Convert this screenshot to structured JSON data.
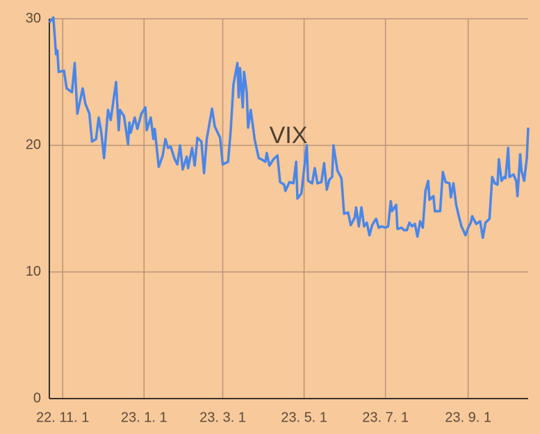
{
  "chart_data": {
    "type": "line",
    "title": "VIX",
    "color": "#4a86e8",
    "grid": true,
    "x": [
      "2022-10-22",
      "2022-10-25",
      "2022-10-27",
      "2022-10-28",
      "2022-10-29",
      "2022-11-02",
      "2022-11-04",
      "2022-11-08",
      "2022-11-10",
      "2022-11-12",
      "2022-11-16",
      "2022-11-18",
      "2022-11-21",
      "2022-11-23",
      "2022-11-26",
      "2022-11-28",
      "2022-11-30",
      "2022-12-02",
      "2022-12-05",
      "2022-12-07",
      "2022-12-09",
      "2022-12-11",
      "2022-12-13",
      "2022-12-14",
      "2022-12-17",
      "2022-12-20",
      "2022-12-21",
      "2022-12-22",
      "2022-12-25",
      "2022-12-27",
      "2022-12-30",
      "2023-01-02",
      "2023-01-03",
      "2023-01-06",
      "2023-01-08",
      "2023-01-09",
      "2023-01-12",
      "2023-01-15",
      "2023-01-17",
      "2023-01-19",
      "2023-01-21",
      "2023-01-24",
      "2023-01-26",
      "2023-01-28",
      "2023-01-30",
      "2023-02-02",
      "2023-02-03",
      "2023-02-06",
      "2023-02-08",
      "2023-02-10",
      "2023-02-13",
      "2023-02-15",
      "2023-02-17",
      "2023-02-21",
      "2023-02-23",
      "2023-02-27",
      "2023-03-01",
      "2023-03-05",
      "2023-03-07",
      "2023-03-09",
      "2023-03-12",
      "2023-03-13",
      "2023-03-14",
      "2023-03-16",
      "2023-03-17",
      "2023-03-19",
      "2023-03-20",
      "2023-03-22",
      "2023-03-25",
      "2023-03-28",
      "2023-03-30",
      "2023-04-02",
      "2023-04-03",
      "2023-04-05",
      "2023-04-08",
      "2023-04-11",
      "2023-04-13",
      "2023-04-16",
      "2023-04-17",
      "2023-04-20",
      "2023-04-23",
      "2023-04-25",
      "2023-04-26",
      "2023-04-29",
      "2023-05-03",
      "2023-05-04",
      "2023-05-07",
      "2023-05-09",
      "2023-05-11",
      "2023-05-14",
      "2023-05-16",
      "2023-05-18",
      "2023-05-20",
      "2023-05-22",
      "2023-05-23",
      "2023-05-26",
      "2023-05-29",
      "2023-05-31",
      "2023-06-03",
      "2023-06-05",
      "2023-06-08",
      "2023-06-09",
      "2023-06-11",
      "2023-06-13",
      "2023-06-15",
      "2023-06-17",
      "2023-06-19",
      "2023-06-21",
      "2023-06-24",
      "2023-06-26",
      "2023-06-28",
      "2023-07-01",
      "2023-07-03",
      "2023-07-05",
      "2023-07-06",
      "2023-07-09",
      "2023-07-10",
      "2023-07-13",
      "2023-07-15",
      "2023-07-17",
      "2023-07-19",
      "2023-07-21",
      "2023-07-23",
      "2023-07-25",
      "2023-07-27",
      "2023-07-29",
      "2023-07-31",
      "2023-08-02",
      "2023-08-03",
      "2023-08-06",
      "2023-08-07",
      "2023-08-11",
      "2023-08-13",
      "2023-08-15",
      "2023-08-18",
      "2023-08-19",
      "2023-08-21",
      "2023-08-23",
      "2023-08-25",
      "2023-08-27",
      "2023-08-30",
      "2023-09-01",
      "2023-09-03",
      "2023-09-04",
      "2023-09-07",
      "2023-09-10",
      "2023-09-12",
      "2023-09-14",
      "2023-09-17",
      "2023-09-19",
      "2023-09-21",
      "2023-09-23",
      "2023-09-24",
      "2023-09-26",
      "2023-09-28",
      "2023-09-29",
      "2023-10-01",
      "2023-10-02",
      "2023-10-05",
      "2023-10-07",
      "2023-10-08",
      "2023-10-10",
      "2023-10-11",
      "2023-10-13",
      "2023-10-15",
      "2023-10-16"
    ],
    "values": [
      29.7,
      30.1,
      27.2,
      27.5,
      25.8,
      25.9,
      24.5,
      24.2,
      26.5,
      22.5,
      24.5,
      23.3,
      22.5,
      20.3,
      20.5,
      22.2,
      21,
      19,
      22.8,
      22,
      23.5,
      25,
      21.2,
      22.8,
      22.3,
      20.1,
      21.8,
      21,
      22.2,
      21.3,
      22.5,
      23,
      21.2,
      22.2,
      20.5,
      21.3,
      18.3,
      19.2,
      20.5,
      19.8,
      19.9,
      18.9,
      18.5,
      20,
      18.1,
      19.1,
      18.2,
      19.8,
      18.4,
      20.6,
      20.3,
      17.8,
      20.5,
      22.9,
      21.5,
      20.6,
      18.5,
      18.7,
      21.2,
      24.8,
      26.5,
      23.8,
      26.1,
      23,
      25.8,
      24.2,
      21.4,
      22.8,
      20.4,
      19,
      18.9,
      18.7,
      19.4,
      18.4,
      18.9,
      19.2,
      17.1,
      16.9,
      16.4,
      17.1,
      17,
      18.7,
      15.8,
      16.2,
      20,
      17.2,
      17,
      18.2,
      17,
      17.1,
      18.6,
      16.5,
      17.3,
      17.5,
      20,
      18,
      17.4,
      14.6,
      14.7,
      13.7,
      14.3,
      15.1,
      13.6,
      15.1,
      13.6,
      13.9,
      12.9,
      13.7,
      14.2,
      13.5,
      13.6,
      13.5,
      13.6,
      15.6,
      14.8,
      15.3,
      13.4,
      13.5,
      13.3,
      13.3,
      13.9,
      13.6,
      13.8,
      12.8,
      14,
      13.5,
      16.4,
      17.2,
      15.7,
      16,
      14.8,
      14.8,
      17.9,
      17.1,
      17,
      15.9,
      17,
      15.3,
      14.4,
      13.6,
      12.9,
      13.5,
      13.9,
      14.4,
      13.8,
      14,
      12.7,
      13.9,
      14.2,
      17.5,
      17,
      16.9,
      18.9,
      17.2,
      17.5,
      17.4,
      19.8,
      17.5,
      17.7,
      17.2,
      16,
      19.3,
      18,
      17.2,
      19,
      21.4
    ],
    "xlim": [
      "2022-10-22",
      "2023-10-16"
    ],
    "xticks": [
      {
        "value": "2022-11-01",
        "label": "22. 11. 1"
      },
      {
        "value": "2023-01-01",
        "label": "23. 1. 1"
      },
      {
        "value": "2023-03-01",
        "label": "23. 3. 1"
      },
      {
        "value": "2023-05-01",
        "label": "23. 5. 1"
      },
      {
        "value": "2023-07-01",
        "label": "23. 7. 1"
      },
      {
        "value": "2023-09-01",
        "label": "23. 9. 1"
      }
    ],
    "ylim": [
      0,
      30
    ],
    "yticks": [
      0,
      10,
      20,
      30
    ]
  }
}
